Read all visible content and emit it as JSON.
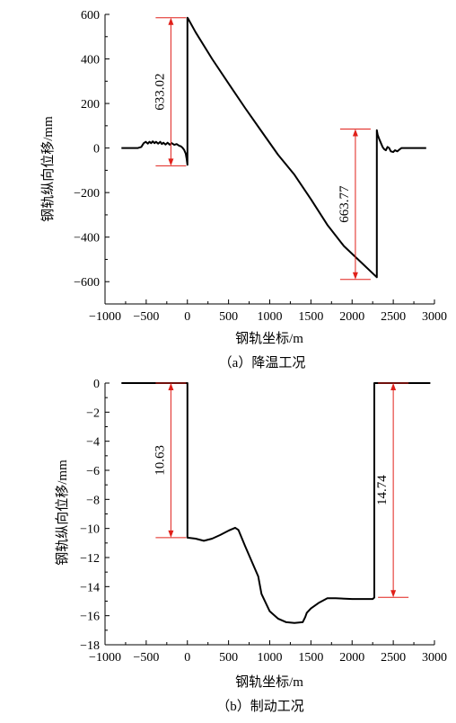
{
  "chart_data": [
    {
      "type": "line",
      "caption": "（a）降温工况",
      "xlabel": "钢轨坐标/m",
      "ylabel": "钢轨纵向位移/mm",
      "xlim": [
        -1000,
        3000
      ],
      "ylim": [
        -700,
        600
      ],
      "xticks": [
        -1000,
        -500,
        0,
        500,
        1000,
        1500,
        2000,
        2500,
        3000
      ],
      "xtick_labels": [
        "−1000",
        "−500",
        "0",
        "500",
        "1000",
        "1500",
        "2000",
        "2500",
        "3000"
      ],
      "yticks": [
        -600,
        -400,
        -200,
        0,
        200,
        400,
        600
      ],
      "ytick_labels": [
        "−600",
        "−400",
        "−200",
        "0",
        "200",
        "400",
        "600"
      ],
      "grid": false,
      "series": [
        {
          "color": "#000000",
          "points": [
            [
              -800,
              0
            ],
            [
              -600,
              0
            ],
            [
              -560,
              5
            ],
            [
              -530,
              22
            ],
            [
              -505,
              28
            ],
            [
              -480,
              20
            ],
            [
              -460,
              28
            ],
            [
              -440,
              22
            ],
            [
              -420,
              30
            ],
            [
              -400,
              22
            ],
            [
              -380,
              28
            ],
            [
              -355,
              20
            ],
            [
              -330,
              28
            ],
            [
              -310,
              18
            ],
            [
              -290,
              24
            ],
            [
              -265,
              16
            ],
            [
              -240,
              24
            ],
            [
              -215,
              15
            ],
            [
              -190,
              22
            ],
            [
              -160,
              14
            ],
            [
              -130,
              18
            ],
            [
              -100,
              10
            ],
            [
              -80,
              8
            ],
            [
              -60,
              2
            ],
            [
              -40,
              -8
            ],
            [
              -20,
              -25
            ],
            [
              -8,
              -50
            ],
            [
              0,
              -75
            ],
            [
              0,
              585
            ],
            [
              10,
              580
            ],
            [
              100,
              520
            ],
            [
              300,
              400
            ],
            [
              500,
              290
            ],
            [
              700,
              180
            ],
            [
              900,
              75
            ],
            [
              1100,
              -30
            ],
            [
              1300,
              -120
            ],
            [
              1500,
              -230
            ],
            [
              1700,
              -345
            ],
            [
              1900,
              -440
            ],
            [
              2100,
              -510
            ],
            [
              2300,
              -580
            ],
            [
              2300,
              80
            ],
            [
              2310,
              60
            ],
            [
              2330,
              40
            ],
            [
              2350,
              22
            ],
            [
              2370,
              5
            ],
            [
              2390,
              -5
            ],
            [
              2410,
              -10
            ],
            [
              2430,
              5
            ],
            [
              2450,
              0
            ],
            [
              2470,
              -15
            ],
            [
              2500,
              -18
            ],
            [
              2520,
              -10
            ],
            [
              2550,
              -15
            ],
            [
              2580,
              -5
            ],
            [
              2600,
              0
            ],
            [
              2900,
              0
            ]
          ]
        }
      ],
      "annotations": [
        {
          "label": "633.02",
          "x": -200,
          "top": 585,
          "bottom": -80
        },
        {
          "label": "663.77",
          "x": 2040,
          "top": 85,
          "bottom": -590
        }
      ],
      "annotation_color": "#e0201a"
    },
    {
      "type": "line",
      "caption": "（b）制动工况",
      "xlabel": "钢轨坐标/m",
      "ylabel": "钢轨纵向位移/mm",
      "xlim": [
        -1000,
        3000
      ],
      "ylim": [
        -18,
        0
      ],
      "xticks": [
        -1000,
        -500,
        0,
        500,
        1000,
        1500,
        2000,
        2500,
        3000
      ],
      "xtick_labels": [
        "−1000",
        "−500",
        "0",
        "500",
        "1000",
        "1500",
        "2000",
        "2500",
        "3000"
      ],
      "yticks": [
        -18,
        -16,
        -14,
        -12,
        -10,
        -8,
        -6,
        -4,
        -2,
        0
      ],
      "ytick_labels": [
        "−18",
        "−16",
        "−14",
        "−12",
        "−10",
        "−8",
        "−6",
        "−4",
        "−2",
        "0"
      ],
      "grid": false,
      "series": [
        {
          "color": "#000000",
          "points": [
            [
              -800,
              0
            ],
            [
              0,
              0
            ],
            [
              0,
              -10.63
            ],
            [
              100,
              -10.7
            ],
            [
              200,
              -10.85
            ],
            [
              300,
              -10.7
            ],
            [
              400,
              -10.45
            ],
            [
              500,
              -10.15
            ],
            [
              580,
              -9.95
            ],
            [
              620,
              -10.1
            ],
            [
              700,
              -11.2
            ],
            [
              800,
              -12.5
            ],
            [
              860,
              -13.3
            ],
            [
              900,
              -14.5
            ],
            [
              1000,
              -15.7
            ],
            [
              1100,
              -16.2
            ],
            [
              1200,
              -16.45
            ],
            [
              1300,
              -16.5
            ],
            [
              1400,
              -16.45
            ],
            [
              1430,
              -16.1
            ],
            [
              1450,
              -15.8
            ],
            [
              1500,
              -15.5
            ],
            [
              1600,
              -15.1
            ],
            [
              1700,
              -14.8
            ],
            [
              1800,
              -14.8
            ],
            [
              2000,
              -14.85
            ],
            [
              2250,
              -14.85
            ],
            [
              2270,
              -14.75
            ],
            [
              2270,
              0
            ],
            [
              2950,
              0
            ]
          ]
        }
      ],
      "annotations": [
        {
          "label": "10.63",
          "x": -200,
          "top": 0,
          "bottom": -10.63
        },
        {
          "label": "14.74",
          "x": 2500,
          "top": 0,
          "bottom": -14.74
        }
      ],
      "annotation_color": "#e0201a"
    }
  ]
}
